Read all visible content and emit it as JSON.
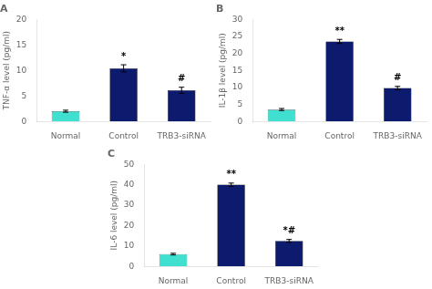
{
  "chart_data": [
    {
      "type": "bar",
      "title": "A",
      "categories": [
        "Normal",
        "Control",
        "TRB3-siRNA"
      ],
      "values": [
        2.0,
        10.4,
        6.1
      ],
      "errors": [
        0.2,
        0.7,
        0.6
      ],
      "colors": [
        "#40E0D0",
        "#0D1B6E",
        "#0D1B6E"
      ],
      "ylabel": "TNF-α level (pg/ml)",
      "ylim": [
        0,
        20
      ],
      "yticks": [
        0,
        5,
        10,
        15,
        20
      ],
      "annotations": [
        {
          "category": "Control",
          "text": "*"
        },
        {
          "category": "TRB3-siRNA",
          "text": "#"
        }
      ],
      "grid": false
    },
    {
      "type": "bar",
      "title": "B",
      "categories": [
        "Normal",
        "Control",
        "TRB3-siRNA"
      ],
      "values": [
        3.5,
        23.5,
        9.8
      ],
      "errors": [
        0.3,
        0.6,
        0.5
      ],
      "colors": [
        "#40E0D0",
        "#0D1B6E",
        "#0D1B6E"
      ],
      "ylabel": "IL-1β level (pg/ml)",
      "ylim": [
        0,
        30
      ],
      "yticks": [
        0,
        5,
        10,
        15,
        20,
        25,
        30
      ],
      "annotations": [
        {
          "category": "Control",
          "text": "**"
        },
        {
          "category": "TRB3-siRNA",
          "text": "#"
        }
      ],
      "grid": false
    },
    {
      "type": "bar",
      "title": "C",
      "categories": [
        "Normal",
        "Control",
        "TRB3-siRNA"
      ],
      "values": [
        6.0,
        40.0,
        12.5
      ],
      "errors": [
        0.4,
        0.8,
        0.7
      ],
      "colors": [
        "#40E0D0",
        "#0D1B6E",
        "#0D1B6E"
      ],
      "ylabel": "IL-6 level (pg/ml)",
      "ylim": [
        0,
        50
      ],
      "yticks": [
        0,
        10,
        20,
        30,
        40,
        50
      ],
      "annotations": [
        {
          "category": "Control",
          "text": "**"
        },
        {
          "category": "TRB3-siRNA",
          "text": "*#"
        }
      ],
      "grid": false
    }
  ]
}
